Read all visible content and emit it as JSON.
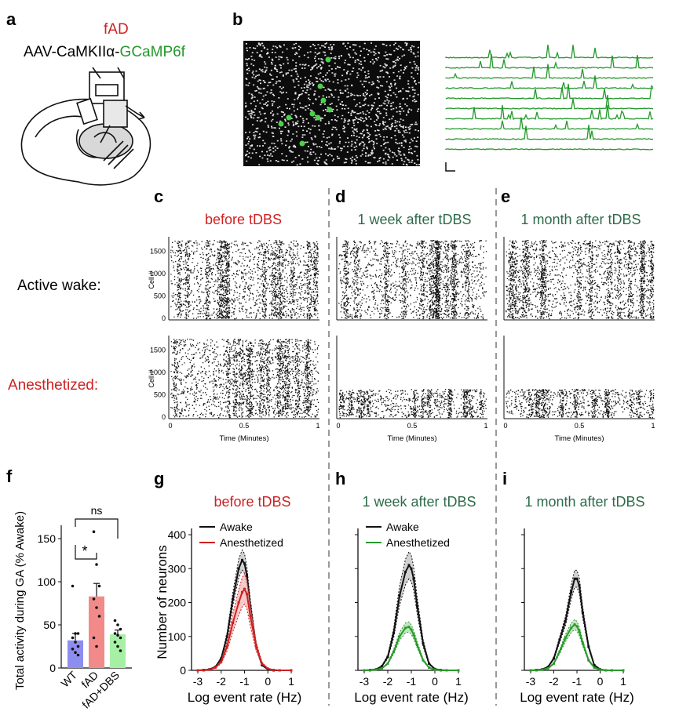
{
  "colors": {
    "red": "#cc2222",
    "green_title": "#2e6b4a",
    "trace_green": "#22992b",
    "awake": "#111111",
    "anes_red": "#d02020",
    "anes_green": "#2a9a2a",
    "bar_wt": "#8d8df0",
    "bar_fad": "#f28a8a",
    "bar_dbs": "#a6f0a6",
    "dash": "#999999"
  },
  "panel_labels": [
    "a",
    "b",
    "c",
    "d",
    "e",
    "f",
    "g",
    "h",
    "i"
  ],
  "panel_a": {
    "text_fad": "fAD",
    "construct_prefix": "AAV-CaMKIIα-",
    "construct_indicator": "GCaMP6f"
  },
  "raster": {
    "condition_titles": [
      "before tDBS",
      "1 week after tDBS",
      "1 month after tDBS"
    ],
    "row_labels": [
      "Active wake:",
      "Anesthetized:"
    ],
    "ylabel": "Cell #",
    "yticks": [
      "0",
      "500",
      "1000",
      "1500"
    ],
    "xticks": [
      "0",
      "0.5",
      "1"
    ],
    "xlabel": "Time (Minutes)"
  },
  "chart_data": [
    {
      "type": "bar",
      "panel": "f",
      "categories": [
        "WT",
        "fAD",
        "fAD+DBS"
      ],
      "values": [
        32,
        83,
        39
      ],
      "errors": [
        8,
        15,
        5
      ],
      "points": [
        [
          95,
          40,
          40,
          35,
          30,
          25,
          22,
          18,
          15
        ],
        [
          158,
          120,
          95,
          80,
          70,
          60,
          35,
          25
        ],
        [
          55,
          50,
          45,
          40,
          38,
          35,
          30,
          25,
          20
        ]
      ],
      "ylabel": "Total activity during GA (% Awake)",
      "ylim": [
        0,
        160
      ],
      "yticks": [
        0,
        50,
        100,
        150
      ],
      "annotations": [
        {
          "text": "*",
          "between": [
            "WT",
            "fAD"
          ]
        },
        {
          "text": "ns",
          "between": [
            "WT",
            "fAD+DBS"
          ]
        }
      ]
    },
    {
      "type": "line",
      "panel": "g",
      "title": "before tDBS",
      "x": [
        -3,
        -2.75,
        -2.5,
        -2.25,
        -2,
        -1.75,
        -1.5,
        -1.25,
        -1.1,
        -1,
        -0.9,
        -0.75,
        -0.5,
        -0.25,
        0,
        0.25,
        0.5,
        1
      ],
      "series": [
        {
          "name": "Awake",
          "values": [
            0,
            1,
            3,
            10,
            35,
            100,
            210,
            300,
            325,
            315,
            280,
            190,
            70,
            15,
            3,
            0,
            0,
            0
          ],
          "band": 30
        },
        {
          "name": "Anesthetized",
          "values": [
            0,
            0,
            2,
            8,
            25,
            70,
            140,
            200,
            230,
            240,
            225,
            160,
            70,
            20,
            5,
            1,
            0,
            0
          ],
          "band": 45
        }
      ],
      "xlabel": "Log event rate (Hz)",
      "ylabel": "Number of neurons",
      "xlim": [
        -3,
        1
      ],
      "ylim": [
        0,
        400
      ],
      "xticks": [
        "-3",
        "-2",
        "-1",
        "0",
        "1"
      ],
      "yticks": [
        "0",
        "100",
        "200",
        "300",
        "400"
      ],
      "legend": "top-left"
    },
    {
      "type": "line",
      "panel": "h",
      "title": "1 week after tDBS",
      "x": [
        -3,
        -2.75,
        -2.5,
        -2.25,
        -2,
        -1.75,
        -1.5,
        -1.25,
        -1.1,
        -1,
        -0.9,
        -0.75,
        -0.5,
        -0.25,
        0,
        0.25,
        0.5,
        1
      ],
      "series": [
        {
          "name": "Awake",
          "values": [
            0,
            1,
            3,
            12,
            40,
            110,
            220,
            290,
            310,
            300,
            270,
            190,
            80,
            20,
            4,
            1,
            0,
            0
          ],
          "band": 40
        },
        {
          "name": "Anesthetized",
          "values": [
            0,
            0,
            2,
            6,
            20,
            55,
            100,
            125,
            128,
            120,
            105,
            75,
            30,
            8,
            2,
            0,
            0,
            0
          ],
          "band": 15
        }
      ],
      "xlabel": "Log event rate (Hz)",
      "xlim": [
        -3,
        1
      ],
      "ylim": [
        0,
        400
      ],
      "xticks": [
        "-3",
        "-2",
        "-1",
        "0",
        "1"
      ],
      "legend": "top-left"
    },
    {
      "type": "line",
      "panel": "i",
      "title": "1 month after tDBS",
      "x": [
        -3,
        -2.75,
        -2.5,
        -2.25,
        -2,
        -1.75,
        -1.5,
        -1.25,
        -1.1,
        -1,
        -0.9,
        -0.75,
        -0.5,
        -0.25,
        0,
        0.25,
        0.5,
        1
      ],
      "series": [
        {
          "name": "Awake",
          "values": [
            0,
            1,
            3,
            10,
            35,
            90,
            145,
            230,
            270,
            270,
            250,
            170,
            70,
            15,
            3,
            0,
            0,
            0
          ],
          "band": 25
        },
        {
          "name": "Anesthetized",
          "values": [
            0,
            0,
            2,
            6,
            20,
            55,
            95,
            125,
            135,
            130,
            115,
            80,
            30,
            8,
            2,
            0,
            0,
            0
          ],
          "band": 15
        }
      ],
      "xlabel": "Log event rate (Hz)",
      "xlim": [
        -3,
        1
      ],
      "ylim": [
        0,
        400
      ],
      "xticks": [
        "-3",
        "-2",
        "-1",
        "0",
        "1"
      ]
    }
  ]
}
